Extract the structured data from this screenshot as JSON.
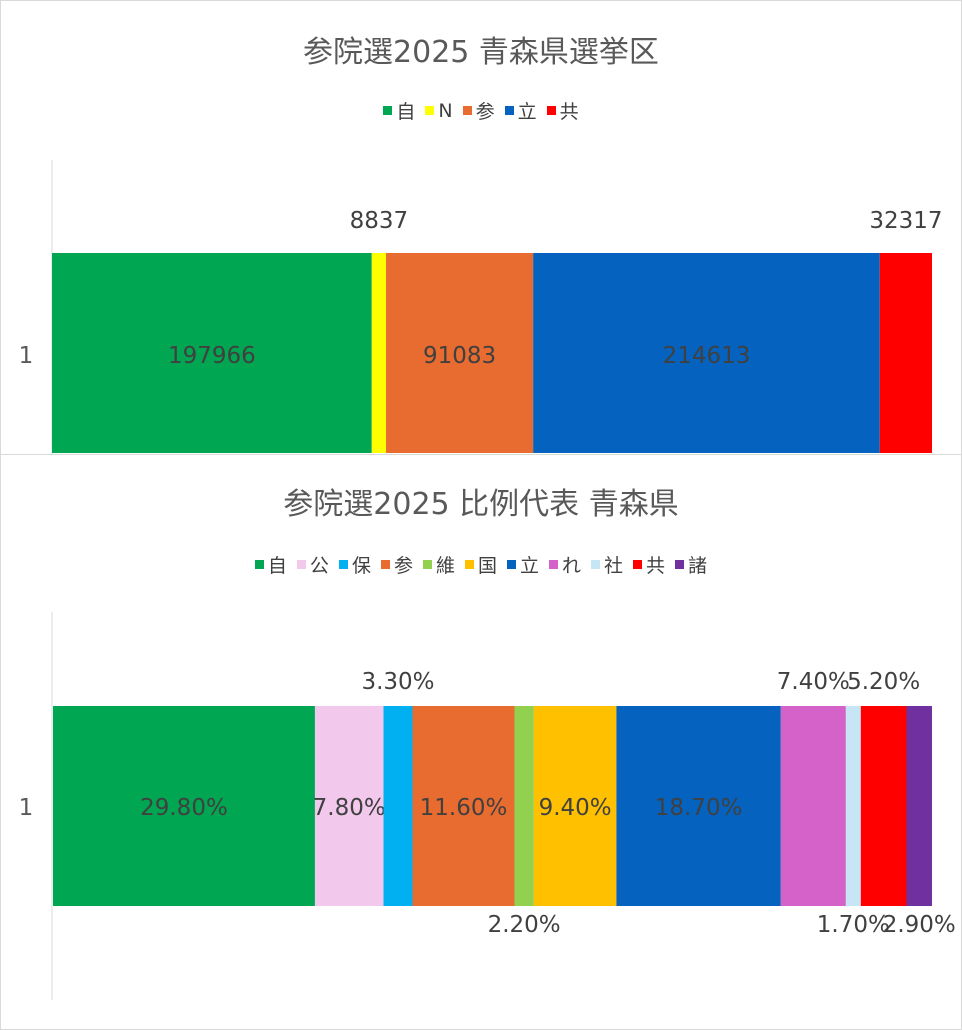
{
  "chart_data": [
    {
      "type": "bar",
      "orientation": "horizontal",
      "stacked": true,
      "title": "参院選2025 青森県選挙区",
      "categories": [
        "1"
      ],
      "series": [
        {
          "name": "自",
          "values": [
            197966
          ],
          "color": "#00a651",
          "label": "197966",
          "label_pos": "inside"
        },
        {
          "name": "N",
          "values": [
            8837
          ],
          "color": "#ffff00",
          "label": "8837",
          "label_pos": "above"
        },
        {
          "name": "参",
          "values": [
            91083
          ],
          "color": "#e86b30",
          "label": "91083",
          "label_pos": "inside"
        },
        {
          "name": "立",
          "values": [
            214613
          ],
          "color": "#0563bf",
          "label": "214613",
          "label_pos": "inside"
        },
        {
          "name": "共",
          "values": [
            32317
          ],
          "color": "#ff0000",
          "label": "32317",
          "label_pos": "above"
        }
      ],
      "legend_position": "top",
      "grid": false
    },
    {
      "type": "bar",
      "orientation": "horizontal",
      "stacked": true,
      "title": "参院選2025 比例代表 青森県",
      "categories": [
        "1"
      ],
      "series": [
        {
          "name": "自",
          "values": [
            29.8
          ],
          "color": "#00a651",
          "label": "29.80%",
          "label_pos": "inside"
        },
        {
          "name": "公",
          "values": [
            7.8
          ],
          "color": "#f2c9ec",
          "label": "7.80%",
          "label_pos": "inside"
        },
        {
          "name": "保",
          "values": [
            3.3
          ],
          "color": "#00b0f0",
          "label": "3.30%",
          "label_pos": "above"
        },
        {
          "name": "参",
          "values": [
            11.6
          ],
          "color": "#e86b30",
          "label": "11.60%",
          "label_pos": "inside"
        },
        {
          "name": "維",
          "values": [
            2.2
          ],
          "color": "#92d050",
          "label": "2.20%",
          "label_pos": "below"
        },
        {
          "name": "国",
          "values": [
            9.4
          ],
          "color": "#ffc000",
          "label": "9.40%",
          "label_pos": "inside"
        },
        {
          "name": "立",
          "values": [
            18.7
          ],
          "color": "#0563bf",
          "label": "18.70%",
          "label_pos": "inside"
        },
        {
          "name": "れ",
          "values": [
            7.4
          ],
          "color": "#d462c8",
          "label": "7.40%",
          "label_pos": "above"
        },
        {
          "name": "社",
          "values": [
            1.7
          ],
          "color": "#c6e6f5",
          "label": "1.70%",
          "label_pos": "below"
        },
        {
          "name": "共",
          "values": [
            5.2
          ],
          "color": "#ff0000",
          "label": "5.20%",
          "label_pos": "above"
        },
        {
          "name": "諸",
          "values": [
            2.9
          ],
          "color": "#7030a0",
          "label": "2.90%",
          "label_pos": "below"
        }
      ],
      "legend_position": "top",
      "grid": false
    }
  ]
}
